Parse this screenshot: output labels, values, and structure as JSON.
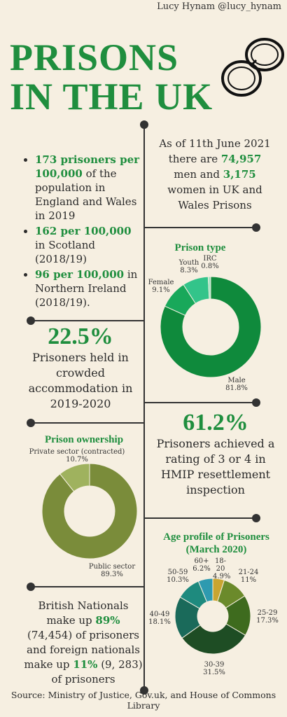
{
  "author": "Lucy Hynam @lucy_hynam",
  "title_line1": "PRISONS",
  "title_line2": "IN THE UK",
  "bullets": [
    {
      "highlight": "173 prisoners per 100,000",
      "rest": " of the population in England and Wales in 2019"
    },
    {
      "highlight": "162 per 100,000",
      "rest": " in Scotland (2018/19)"
    },
    {
      "highlight": "96 per 100,000",
      "rest": " in Northern Ireland (2018/19)."
    }
  ],
  "intro": {
    "part1": "As of 11th June 2021 there are ",
    "men": "74,957",
    "part2": " men and ",
    "women": "3,175",
    "part3": " women in UK and Wales Prisons"
  },
  "crowded": {
    "value": "22.5%",
    "text": "Prisoners held in crowded accommodation in 2019-2020"
  },
  "resettlement": {
    "value": "61.2%",
    "text": "Prisoners achieved a rating of 3 or 4 in HMIP resettlement inspection"
  },
  "nationals": {
    "p1": "British Nationals make up ",
    "british_pct": "89%",
    "p2": " (74,454) of prisoners and foreign nationals make up ",
    "foreign_pct": "11%",
    "p3": " (9, 283) of prisoners"
  },
  "footer": "Source: Ministry of Justice, Gov.uk, and House of Commons Library",
  "colors": {
    "bg": "#f6efe1",
    "accent": "#1f8e3e",
    "olive": "#7a8c3a",
    "line": "#333333"
  },
  "chart_data": [
    {
      "type": "pie",
      "title": "Prison type",
      "categories": [
        "Male",
        "Female",
        "Youth",
        "IRC"
      ],
      "values": [
        81.8,
        9.1,
        8.3,
        0.8
      ],
      "labels": [
        "81.8%",
        "9.1%",
        "8.3%",
        "0.8%"
      ],
      "colors": [
        "#0f8a3c",
        "#19a85a",
        "#33c48a",
        "#9fe3c3"
      ]
    },
    {
      "type": "pie",
      "title": "Prison ownership",
      "categories": [
        "Public sector",
        "Private sector (contracted)"
      ],
      "values": [
        89.3,
        10.7
      ],
      "labels": [
        "89.3%",
        "10.7%"
      ],
      "colors": [
        "#7a8c3a",
        "#9fb25e"
      ]
    },
    {
      "type": "pie",
      "title": "Age profile of Prisoners (March 2020)",
      "categories": [
        "18-20",
        "21-24",
        "25-29",
        "30-39",
        "40-49",
        "50-59",
        "60+"
      ],
      "values": [
        4.9,
        11,
        17.3,
        31.5,
        18.1,
        10.3,
        6.2
      ],
      "labels": [
        "4.9%",
        "11%",
        "17.3%",
        "31.5%",
        "18.1%",
        "10.3%",
        "6.2%"
      ],
      "colors": [
        "#c9a531",
        "#6b8a2b",
        "#3e6b1e",
        "#1e4d24",
        "#1a6a5a",
        "#1e8a7e",
        "#2e9ab0"
      ]
    }
  ]
}
